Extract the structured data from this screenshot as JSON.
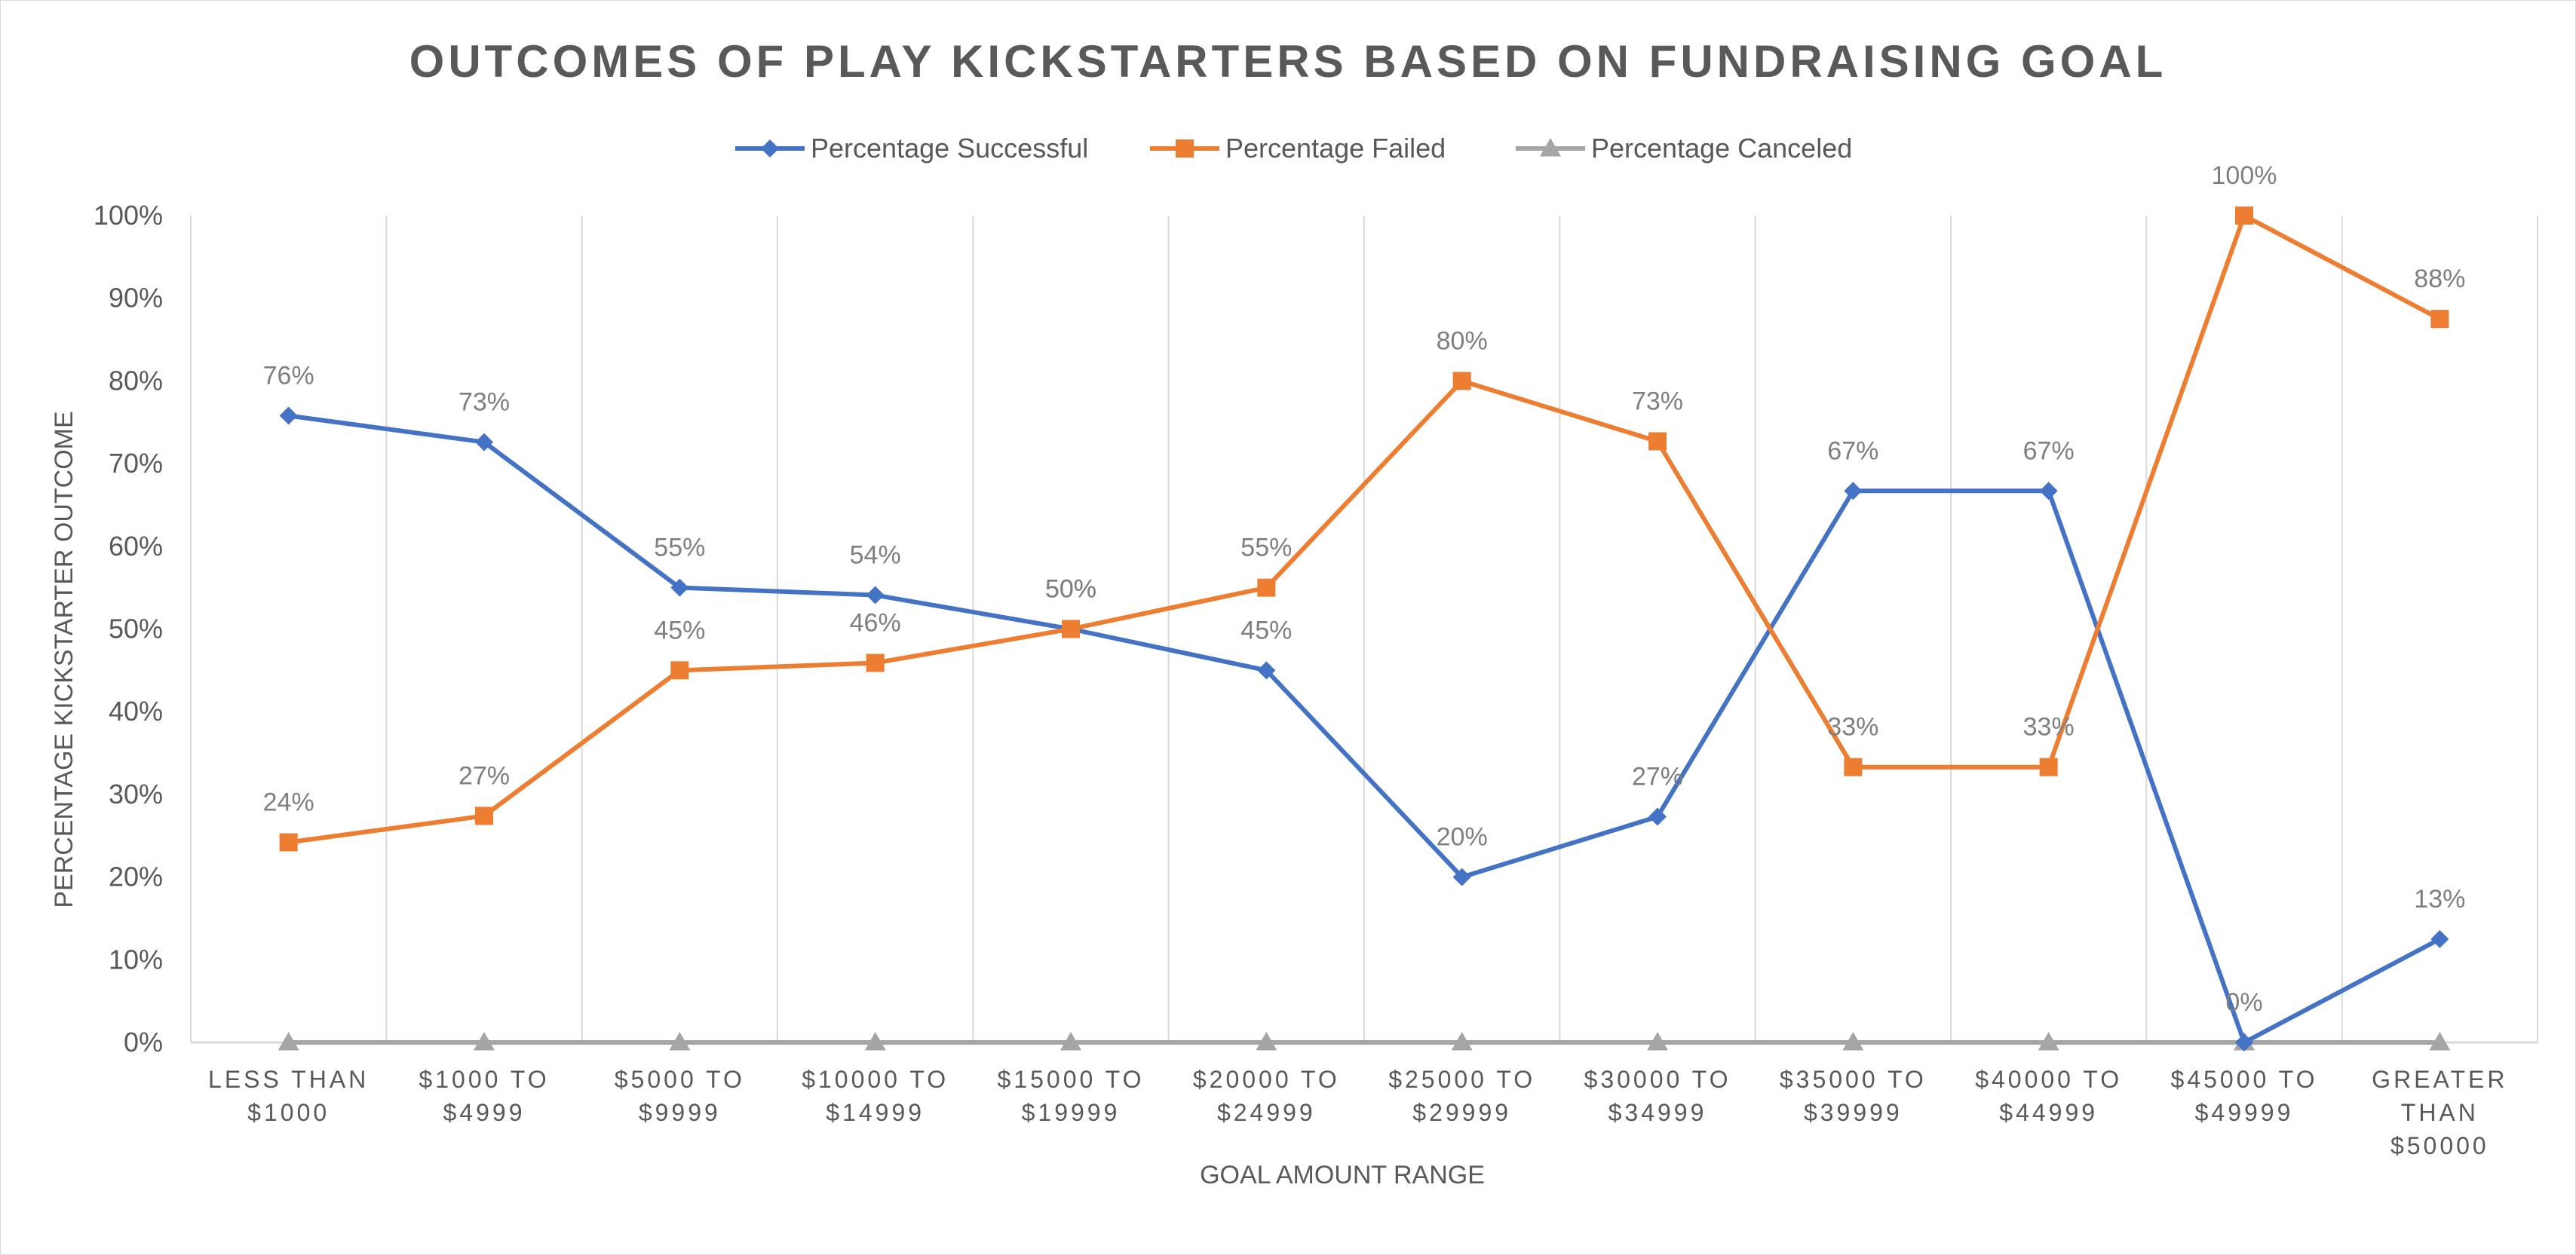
{
  "chart_data": {
    "type": "line",
    "title": "OUTCOMES OF PLAY KICKSTARTERS BASED ON FUNDRAISING GOAL",
    "xlabel": "GOAL AMOUNT RANGE",
    "ylabel": "PERCENTAGE KICKSTARTER OUTCOME",
    "ylim": [
      0,
      1
    ],
    "y_ticks": [
      "0%",
      "10%",
      "20%",
      "30%",
      "40%",
      "50%",
      "60%",
      "70%",
      "80%",
      "90%",
      "100%"
    ],
    "categories": [
      [
        "LESS THAN",
        "$1000"
      ],
      [
        "$1000 TO",
        "$4999"
      ],
      [
        "$5000 TO",
        "$9999"
      ],
      [
        "$10000 TO",
        "$14999"
      ],
      [
        "$15000 TO",
        "$19999"
      ],
      [
        "$20000 TO",
        "$24999"
      ],
      [
        "$25000 TO",
        "$29999"
      ],
      [
        "$30000 TO",
        "$34999"
      ],
      [
        "$35000 TO",
        "$39999"
      ],
      [
        "$40000 TO",
        "$44999"
      ],
      [
        "$45000 TO",
        "$49999"
      ],
      [
        "GREATER",
        "THAN",
        "$50000"
      ]
    ],
    "grid": "vertical category gridlines",
    "legend": "top-center",
    "series": [
      {
        "name": "Percentage Successful",
        "color": "#4472c4",
        "marker": "diamond",
        "values": [
          0.758,
          0.726,
          0.55,
          0.541,
          0.5,
          0.45,
          0.2,
          0.273,
          0.667,
          0.667,
          0.0,
          0.125
        ],
        "labels": [
          "76%",
          "73%",
          "55%",
          "54%",
          "50%",
          "45%",
          "20%",
          "27%",
          "67%",
          "67%",
          "0%",
          "13%"
        ]
      },
      {
        "name": "Percentage Failed",
        "color": "#ed7d31",
        "marker": "square",
        "values": [
          0.242,
          0.274,
          0.45,
          0.459,
          0.5,
          0.55,
          0.8,
          0.727,
          0.333,
          0.333,
          1.0,
          0.875
        ],
        "labels": [
          "24%",
          "27%",
          "45%",
          "46%",
          "50%",
          "55%",
          "80%",
          "73%",
          "33%",
          "33%",
          "100%",
          "88%"
        ]
      },
      {
        "name": "Percentage Canceled",
        "color": "#a5a5a5",
        "marker": "triangle",
        "values": [
          0,
          0,
          0,
          0,
          0,
          0,
          0,
          0,
          0,
          0,
          0,
          0
        ],
        "labels": []
      }
    ]
  }
}
